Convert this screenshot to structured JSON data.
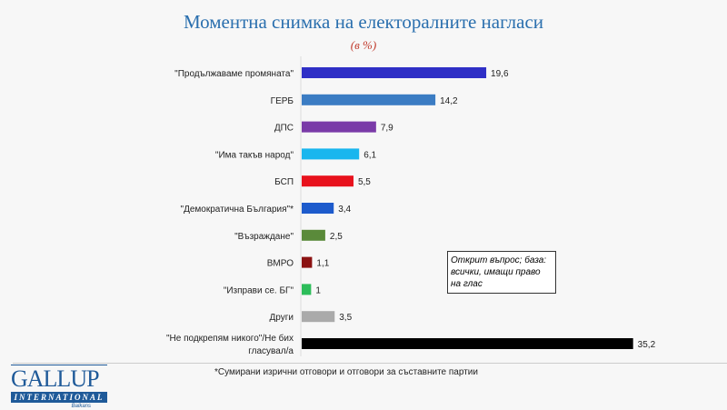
{
  "chart_data": {
    "type": "bar",
    "orientation": "horizontal",
    "title": "Моментна снимка на електоралните нагласи",
    "subtitle": "(в %)",
    "categories": [
      "\"Продължаваме промяната\"",
      "ГЕРБ",
      "ДПС",
      "\"Има такъв народ\"",
      "БСП",
      "\"Демократична България\"*",
      "\"Възраждане\"",
      "ВМРО",
      "\"Изправи се. БГ\"",
      "Други",
      "\"Не подкрепям никого\"/Не бих гласувал/а"
    ],
    "values": [
      19.6,
      14.2,
      7.9,
      6.1,
      5.5,
      3.4,
      2.5,
      1.1,
      1,
      3.5,
      35.2
    ],
    "value_labels": [
      "19,6",
      "14,2",
      "7,9",
      "6,1",
      "5,5",
      "3,4",
      "2,5",
      "1,1",
      "1",
      "3,5",
      "35,2"
    ],
    "colors": [
      "#2f2fc6",
      "#3b7cc3",
      "#7a3aa8",
      "#19b6ee",
      "#e8111c",
      "#1d5bcc",
      "#5a8a3a",
      "#8b1212",
      "#2dbd5a",
      "#aaaaaa",
      "#000000"
    ],
    "grid": false
  },
  "annotation": "Открит въпрос; база: всички, имащи право на глас",
  "footnote": "*Сумирани изрични отговори и отговори за съставните партии",
  "logo": {
    "name": "GALLUP",
    "sub": "INTERNATIONAL",
    "region": "Balkans"
  }
}
